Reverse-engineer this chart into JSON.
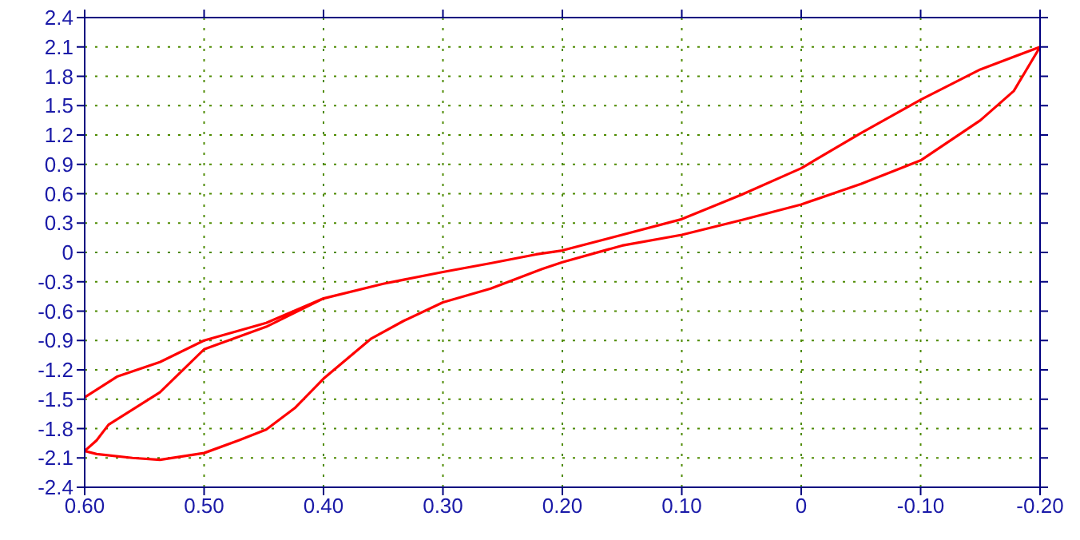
{
  "chart_data": {
    "type": "line",
    "x": [
      0.6,
      0.573,
      0.537,
      0.5,
      0.448,
      0.4,
      0.35,
      0.3,
      0.26,
      0.222,
      0.2,
      0.15,
      0.1,
      0.05,
      0,
      -0.05,
      -0.1,
      -0.15,
      -0.2,
      -0.178,
      -0.15,
      -0.1,
      -0.05,
      0,
      0.05,
      0.1,
      0.15,
      0.2,
      0.217,
      0.26,
      0.3,
      0.333,
      0.36,
      0.4,
      0.424,
      0.448,
      0.471,
      0.5,
      0.537,
      0.56,
      0.59,
      0.6,
      0.59,
      0.58,
      0.537,
      0.5,
      0.448,
      0.4
    ],
    "series": [
      {
        "color": "#ff0000",
        "values": [
          -1.48,
          -1.27,
          -1.12,
          -0.9,
          -0.72,
          -0.47,
          -0.32,
          -0.2,
          -0.11,
          -0.02,
          0.02,
          0.18,
          0.34,
          0.59,
          0.86,
          1.22,
          1.56,
          1.87,
          2.1,
          1.65,
          1.35,
          0.94,
          0.7,
          0.49,
          0.33,
          0.18,
          0.07,
          -0.1,
          -0.17,
          -0.37,
          -0.51,
          -0.7,
          -0.88,
          -1.29,
          -1.59,
          -1.81,
          -1.92,
          -2.05,
          -2.12,
          -2.1,
          -2.06,
          -2.03,
          -1.92,
          -1.76,
          -1.43,
          -0.99,
          -0.76,
          -0.47
        ]
      }
    ],
    "xlim": [
      0.6,
      -0.2
    ],
    "xticks": [
      {
        "value": 0.6,
        "label": "0.60"
      },
      {
        "value": 0.5,
        "label": "0.50"
      },
      {
        "value": 0.4,
        "label": "0.40"
      },
      {
        "value": 0.3,
        "label": "0.30"
      },
      {
        "value": 0.2,
        "label": "0.20"
      },
      {
        "value": 0.1,
        "label": "0.10"
      },
      0,
      {
        "value": -0.1,
        "label": "-0.10"
      },
      {
        "value": -0.2,
        "label": "-0.20"
      }
    ],
    "ylim": [
      -2.4,
      2.4
    ],
    "yticks": [
      -2.4,
      -2.1,
      -1.8,
      -1.5,
      -1.2,
      -0.9,
      -0.6,
      -0.3,
      0,
      0.3,
      0.6,
      0.9,
      1.2,
      1.5,
      1.8,
      2.1,
      2.4
    ],
    "grid": true
  }
}
